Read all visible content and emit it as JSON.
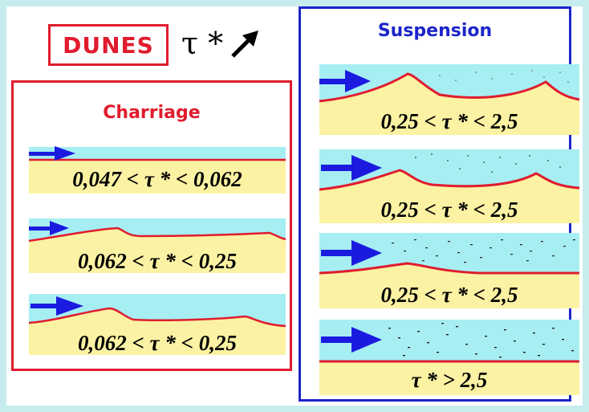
{
  "header": {
    "dunes_label": "DUNES",
    "tau_label": "τ *"
  },
  "charriage": {
    "title": "Charriage",
    "items": [
      {
        "label": "0,047 < τ * < 0,062"
      },
      {
        "label": "0,062 < τ * < 0,25"
      },
      {
        "label": "0,062 < τ * < 0,25"
      }
    ]
  },
  "suspension": {
    "title": "Suspension",
    "items": [
      {
        "label": "0,25 < τ * < 2,5"
      },
      {
        "label": "0,25 < τ * < 2,5"
      },
      {
        "label": "0,25 < τ * < 2,5"
      },
      {
        "label": "τ * > 2,5"
      }
    ]
  },
  "colors": {
    "water": "#a6eef2",
    "sand": "#fbf2a3",
    "bed_line": "#e01c2e",
    "flow_arrow": "#1b1be0",
    "charriage_frame": "#e01c2e",
    "suspension_frame": "#1c25c9",
    "background": "#c6ecee"
  }
}
